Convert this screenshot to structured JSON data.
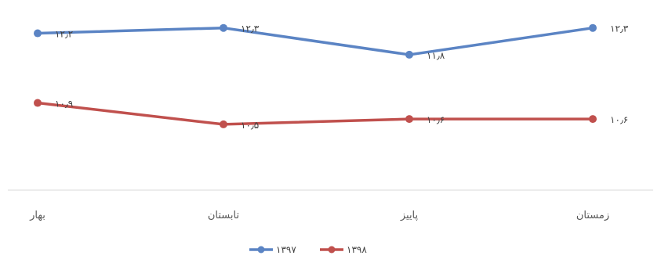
{
  "chart_data": {
    "type": "line",
    "categories": [
      "بهار",
      "تابستان",
      "پاییز",
      "زمستان"
    ],
    "series": [
      {
        "name": "۱۳۹۷",
        "values": [
          12.2,
          12.3,
          11.8,
          12.3
        ],
        "labels": [
          "۱۲٫۲",
          "۱۲٫۳",
          "۱۱٫۸",
          "۱۲٫۳"
        ],
        "color": "#5b84c4"
      },
      {
        "name": "۱۳۹۸",
        "values": [
          10.9,
          10.5,
          10.6,
          10.6
        ],
        "labels": [
          "۱۰٫۹",
          "۱۰٫۵",
          "۱۰٫۶",
          "۱۰٫۶"
        ],
        "color": "#c0504d"
      }
    ],
    "ylim": [
      9.9,
      12.5
    ],
    "grid": false,
    "legend": "bottom"
  }
}
